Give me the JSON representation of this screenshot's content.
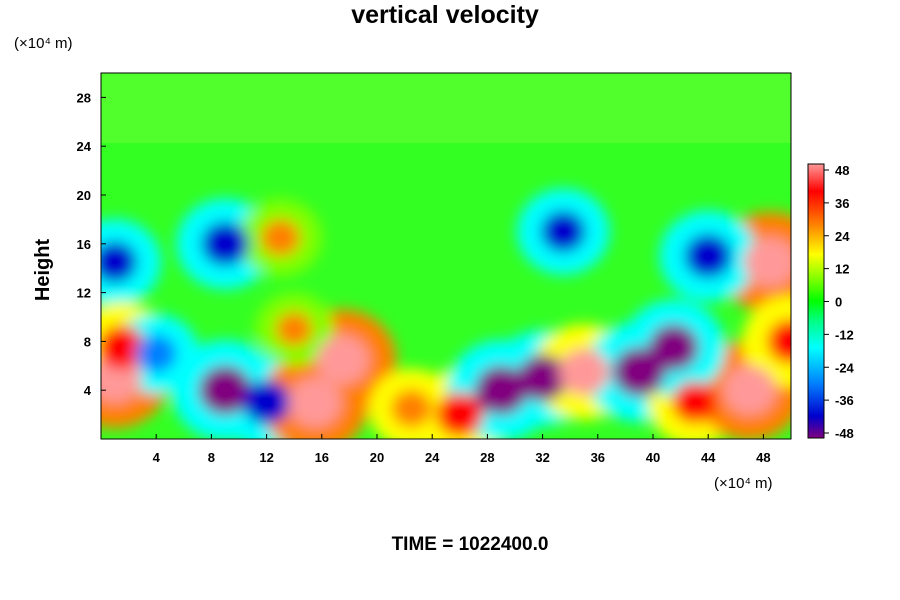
{
  "chart_data": {
    "type": "heatmap",
    "title": "vertical velocity",
    "ylabel": "Height",
    "x_unit": "(×10⁴ m)",
    "y_unit": "(×10⁴ m)",
    "footer": "TIME = 1022400.0",
    "x_ticks": [
      "4",
      "8",
      "12",
      "16",
      "20",
      "24",
      "28",
      "32",
      "36",
      "40",
      "44",
      "48"
    ],
    "y_ticks": [
      "4",
      "8",
      "12",
      "16",
      "20",
      "24",
      "28"
    ],
    "xlim": [
      0,
      50
    ],
    "ylim": [
      0,
      30
    ],
    "colorbar": {
      "ticks": [
        "48",
        "36",
        "24",
        "12",
        "0",
        "-12",
        "-24",
        "-36",
        "-48"
      ],
      "range": [
        -48,
        48
      ],
      "colors": [
        "#800080",
        "#0000cc",
        "#0080ff",
        "#00ffff",
        "#00ff80",
        "#00ff00",
        "#80ff00",
        "#ffff00",
        "#ff8000",
        "#ff0000",
        "#ff9999"
      ]
    },
    "features": [
      {
        "x": 1,
        "y": 5,
        "value": 48
      },
      {
        "x": 9,
        "y": 4,
        "value": -48
      },
      {
        "x": 12,
        "y": 3,
        "value": -40
      },
      {
        "x": 15.5,
        "y": 3,
        "value": 48
      },
      {
        "x": 17.5,
        "y": 6.5,
        "value": 48
      },
      {
        "x": 22.5,
        "y": 2.5,
        "value": 30
      },
      {
        "x": 26,
        "y": 2,
        "value": 40
      },
      {
        "x": 29,
        "y": 4,
        "value": -48
      },
      {
        "x": 32,
        "y": 5,
        "value": -44
      },
      {
        "x": 35,
        "y": 5.5,
        "value": 44
      },
      {
        "x": 39,
        "y": 5.5,
        "value": -48
      },
      {
        "x": 43,
        "y": 3,
        "value": 36
      },
      {
        "x": 47,
        "y": 4,
        "value": 48
      },
      {
        "x": 48.5,
        "y": 14.5,
        "value": 48
      },
      {
        "x": 50,
        "y": 8,
        "value": 40
      },
      {
        "x": 9,
        "y": 16,
        "value": -40
      },
      {
        "x": 13,
        "y": 16.5,
        "value": 28
      },
      {
        "x": 33.5,
        "y": 17,
        "value": -36
      },
      {
        "x": 44,
        "y": 15,
        "value": -40
      },
      {
        "x": 1,
        "y": 14.5,
        "value": -36
      },
      {
        "x": 1.5,
        "y": 7.5,
        "value": 40
      },
      {
        "x": 4,
        "y": 7,
        "value": -30
      },
      {
        "x": 14,
        "y": 9,
        "value": 24
      },
      {
        "x": 41.5,
        "y": 7.5,
        "value": -44
      }
    ]
  }
}
